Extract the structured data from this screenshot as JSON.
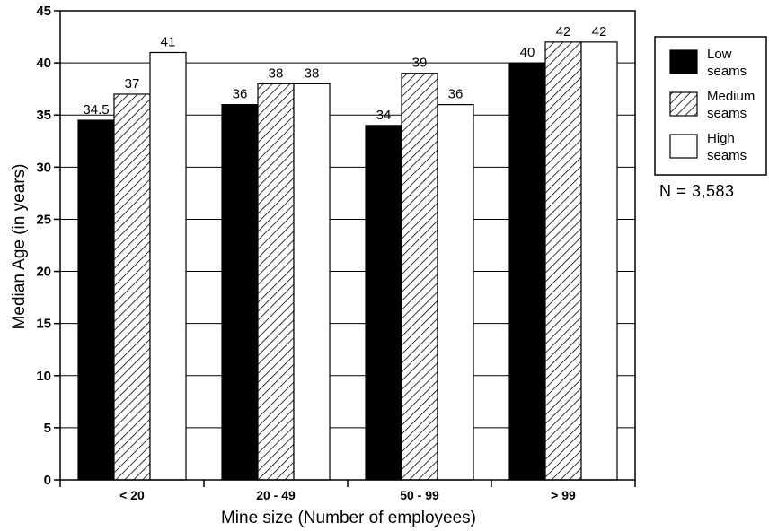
{
  "chart_data": {
    "type": "bar",
    "xlabel": "Mine size (Number of employees)",
    "ylabel": "Median Age (in years)",
    "categories": [
      "< 20",
      "20 - 49",
      "50 - 99",
      "> 99"
    ],
    "series": [
      {
        "name": "Low seams",
        "legend_lines": [
          "Low",
          "seams"
        ],
        "fill": "solid",
        "color": "#000000",
        "values": [
          34.5,
          36,
          34,
          40
        ],
        "labels": [
          "34.5",
          "36",
          "34",
          "40"
        ]
      },
      {
        "name": "Medium seams",
        "legend_lines": [
          "Medium",
          "seams"
        ],
        "fill": "hatched",
        "color": "#000000",
        "values": [
          37,
          38,
          39,
          42
        ],
        "labels": [
          "37",
          "38",
          "39",
          "42"
        ]
      },
      {
        "name": "High seams",
        "legend_lines": [
          "High",
          "seams"
        ],
        "fill": "white",
        "color": "#ffffff",
        "values": [
          41,
          38,
          36,
          42
        ],
        "labels": [
          "41",
          "38",
          "36",
          "42"
        ]
      }
    ],
    "yticks": [
      "0",
      "5",
      "10",
      "15",
      "20",
      "25",
      "30",
      "35",
      "40",
      "45"
    ],
    "ylim": [
      0,
      45
    ],
    "grid": "horizontal",
    "legend_position": "right"
  },
  "note": {
    "label": "N =",
    "value": "3,583"
  }
}
